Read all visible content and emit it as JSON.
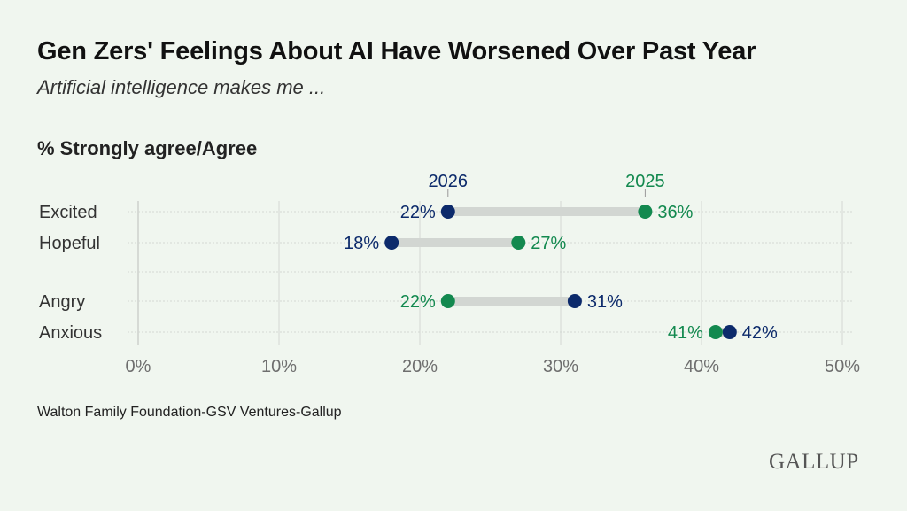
{
  "chart_data": {
    "type": "dumbbell",
    "title": "Gen Zers' Feelings About AI Have Worsened Over Past Year",
    "subtitle": "Artificial intelligence makes me ...",
    "metric_label": "% Strongly agree/Agree",
    "categories": [
      "Excited",
      "Hopeful",
      "Angry",
      "Anxious"
    ],
    "series": [
      {
        "name": "2026",
        "color": "#0c2a6b",
        "values": [
          22,
          18,
          31,
          42
        ]
      },
      {
        "name": "2025",
        "color": "#13894f",
        "values": [
          36,
          27,
          22,
          41
        ]
      }
    ],
    "value_suffix": "%",
    "xlim": [
      0,
      50
    ],
    "xticks": [
      "0%",
      "10%",
      "20%",
      "30%",
      "40%",
      "50%"
    ],
    "grid": true,
    "source": "Walton Family Foundation-GSV Ventures-Gallup"
  },
  "logo": "GALLUP"
}
